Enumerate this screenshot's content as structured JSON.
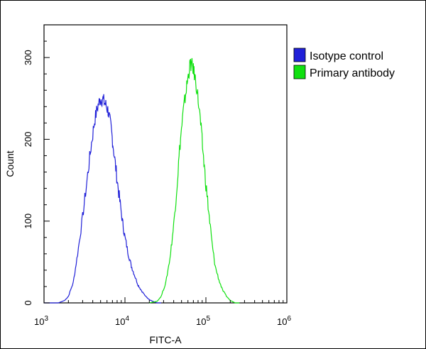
{
  "chart_data": {
    "type": "line",
    "x_scale": "log",
    "xlim": [
      1000,
      1000000
    ],
    "ylim": [
      0,
      340
    ],
    "xlabel": "FITC-A",
    "ylabel": "Count",
    "x_ticks": [
      {
        "value": 1000,
        "mantissa": "10",
        "exp": "3"
      },
      {
        "value": 10000,
        "mantissa": "10",
        "exp": "4"
      },
      {
        "value": 100000,
        "mantissa": "10",
        "exp": "5"
      },
      {
        "value": 1000000,
        "mantissa": "10",
        "exp": "6"
      }
    ],
    "y_ticks": [
      0,
      100,
      200,
      300
    ],
    "legend_position": "top-right",
    "grid": false,
    "series": [
      {
        "name": "Isotype control",
        "color": "#2020d8",
        "x": [
          1000,
          1500,
          1800,
          2000,
          2300,
          2600,
          3000,
          3400,
          3800,
          4200,
          4600,
          5000,
          5400,
          5800,
          6200,
          6700,
          7200,
          7800,
          8500,
          9300,
          10000,
          11000,
          12000,
          13000,
          14500,
          16000,
          18000,
          20000,
          22000,
          25000,
          28000
        ],
        "y": [
          0,
          0,
          3,
          8,
          25,
          60,
          105,
          150,
          190,
          222,
          240,
          250,
          248,
          242,
          235,
          215,
          190,
          160,
          130,
          100,
          80,
          60,
          45,
          35,
          22,
          15,
          8,
          4,
          2,
          0,
          0
        ]
      },
      {
        "name": "Primary antibody",
        "color": "#10e010",
        "x": [
          20000,
          25000,
          28000,
          32000,
          36000,
          40000,
          44000,
          48000,
          52000,
          56000,
          60000,
          64000,
          68000,
          72000,
          78000,
          85000,
          92000,
          100000,
          110000,
          120000,
          130000,
          145000,
          160000,
          180000,
          200000,
          230000,
          260000
        ],
        "y": [
          0,
          2,
          8,
          25,
          55,
          95,
          145,
          195,
          230,
          255,
          275,
          292,
          290,
          280,
          260,
          225,
          185,
          145,
          105,
          70,
          45,
          28,
          16,
          8,
          3,
          0,
          0
        ]
      }
    ]
  }
}
